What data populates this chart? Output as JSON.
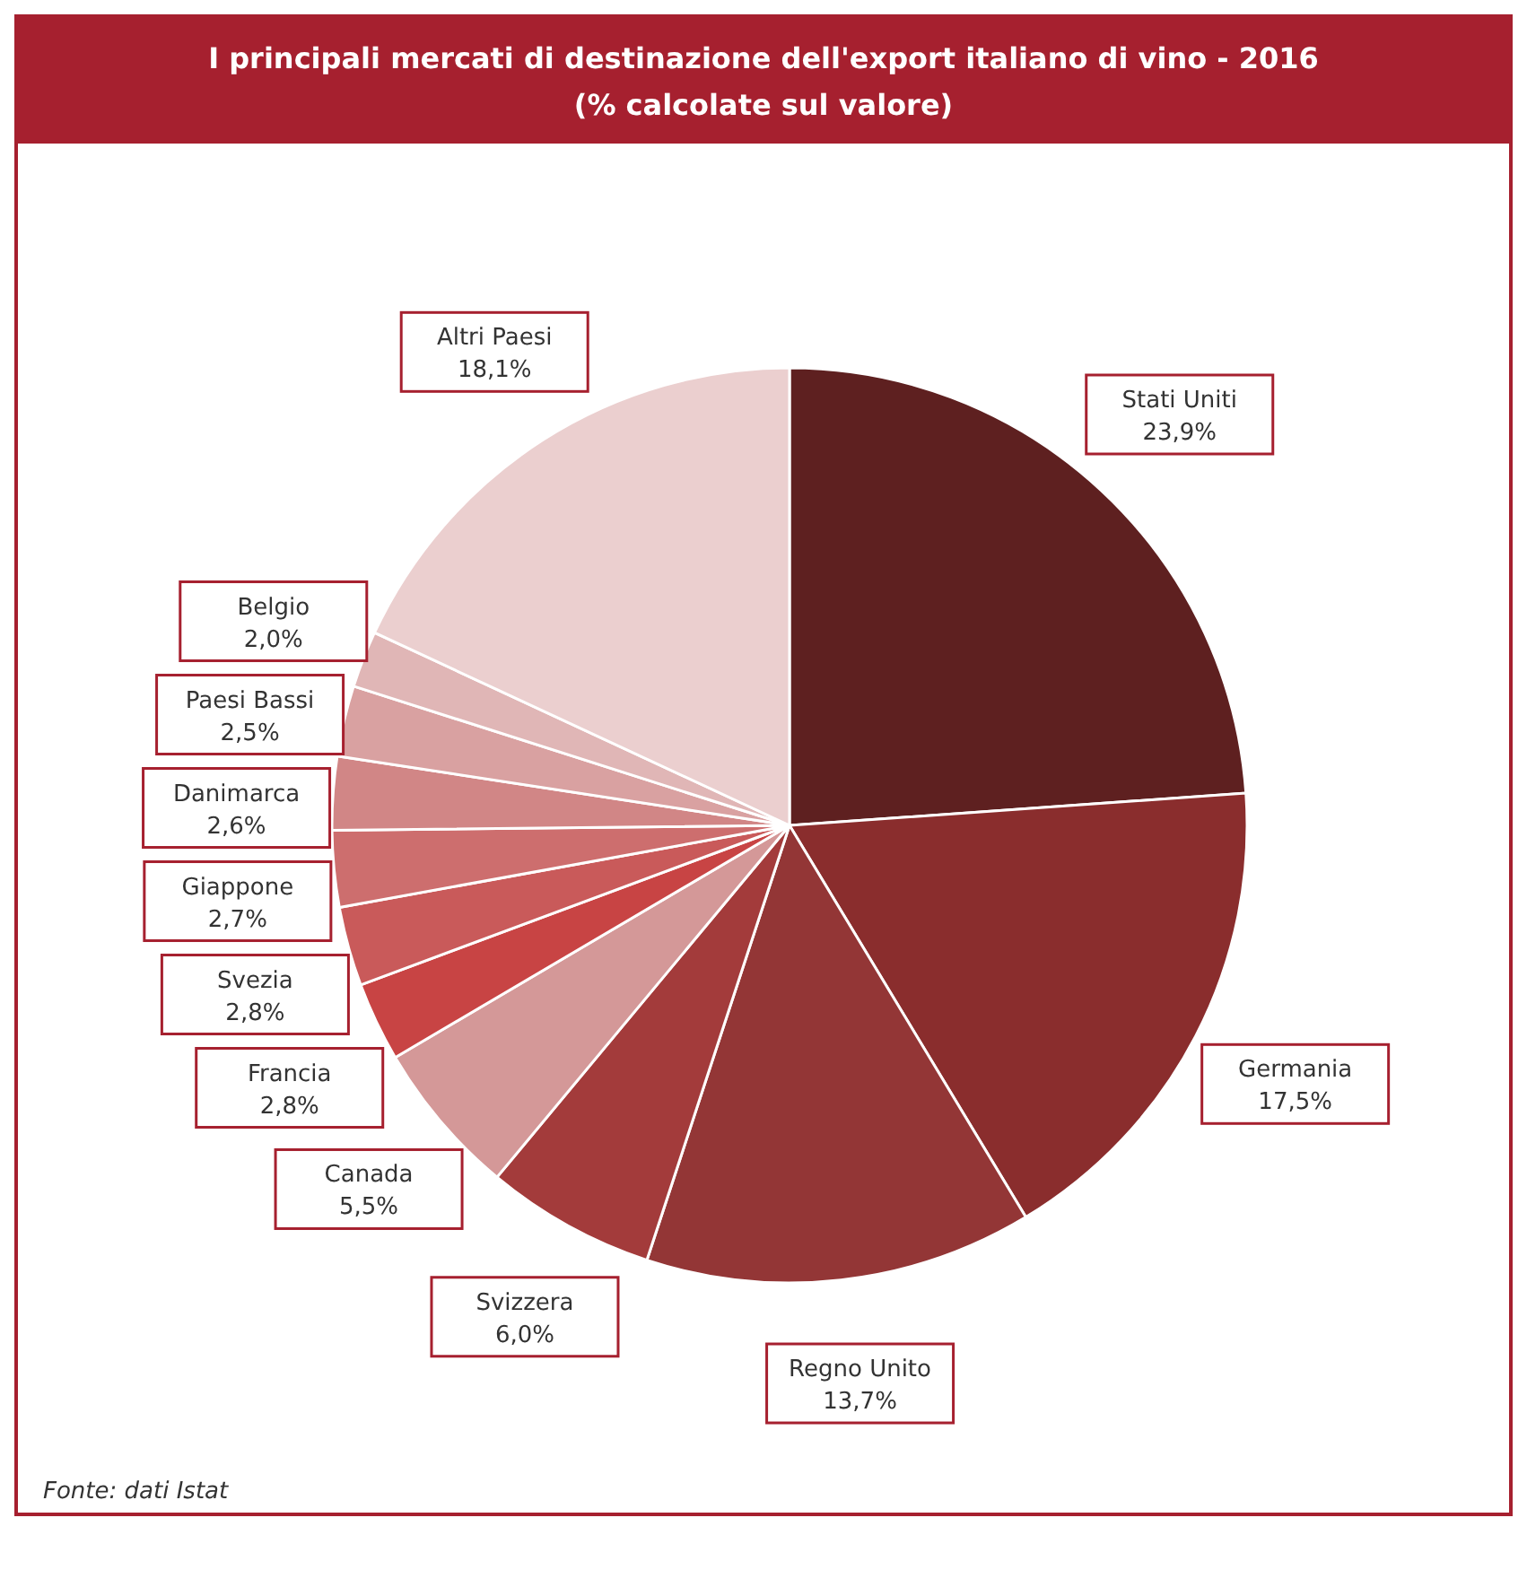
{
  "chart_data": {
    "type": "pie",
    "title": "I principali mercati di destinazione dell'export italiano di vino - 2016",
    "subtitle": "(% calcolate sul valore)",
    "categories": [
      "Stati Uniti",
      "Germania",
      "Regno Unito",
      "Svizzera",
      "Canada",
      "Francia",
      "Svezia",
      "Giappone",
      "Danimarca",
      "Paesi Bassi",
      "Belgio",
      "Altri Paesi"
    ],
    "values": [
      23.9,
      17.5,
      13.7,
      6.0,
      5.5,
      2.8,
      2.8,
      2.7,
      2.6,
      2.5,
      2.0,
      18.1
    ],
    "value_labels": [
      "23,9%",
      "17,5%",
      "13,7%",
      "6,0%",
      "5,5%",
      "2,8%",
      "2,8%",
      "2,7%",
      "2,6%",
      "2,5%",
      "2,0%",
      "18,1%"
    ],
    "colors": [
      "#5e2020",
      "#8a2d2d",
      "#933636",
      "#a33b3b",
      "#d49898",
      "#c84444",
      "#c95a5a",
      "#cd6e6e",
      "#d18686",
      "#d9a1a1",
      "#e0b6b6",
      "#ebcfcf"
    ],
    "annotations": [
      "Fonte: dati Istat"
    ]
  }
}
